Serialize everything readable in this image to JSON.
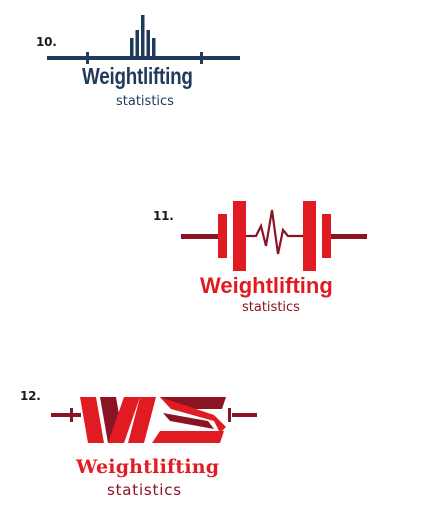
{
  "colors": {
    "navy": "#1f3a5a",
    "red": "#e01b22",
    "dark_red": "#8a1424"
  },
  "logos": [
    {
      "number": "10.",
      "title": "Weightlifting",
      "subtitle": "statistics",
      "icon": "barbell-bars-icon"
    },
    {
      "number": "11.",
      "title": "Weightlifting",
      "subtitle": "statistics",
      "icon": "barbell-heartbeat-icon"
    },
    {
      "number": "12.",
      "title": "Weightlifting",
      "subtitle": "statistics",
      "icon": "ws-monogram-barbell-icon"
    }
  ]
}
